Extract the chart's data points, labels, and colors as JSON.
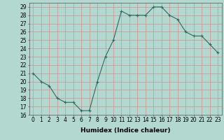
{
  "x": [
    0,
    1,
    2,
    3,
    4,
    5,
    6,
    7,
    8,
    9,
    10,
    11,
    12,
    13,
    14,
    15,
    16,
    17,
    18,
    19,
    20,
    21,
    22,
    23
  ],
  "y": [
    21,
    20,
    19.5,
    18,
    17.5,
    17.5,
    16.5,
    16.5,
    20,
    23,
    25,
    28.5,
    28,
    28,
    28,
    29,
    29,
    28,
    27.5,
    26,
    25.5,
    25.5,
    24.5,
    23.5
  ],
  "line_color": "#2e6b5e",
  "marker": "+",
  "bg_color": "#b2d8d0",
  "grid_color": "#d09090",
  "xlabel": "Humidex (Indice chaleur)",
  "xlim": [
    -0.5,
    23.5
  ],
  "ylim": [
    16,
    29.5
  ],
  "yticks": [
    16,
    17,
    18,
    19,
    20,
    21,
    22,
    23,
    24,
    25,
    26,
    27,
    28,
    29
  ],
  "xticks": [
    0,
    1,
    2,
    3,
    4,
    5,
    6,
    7,
    8,
    9,
    10,
    11,
    12,
    13,
    14,
    15,
    16,
    17,
    18,
    19,
    20,
    21,
    22,
    23
  ],
  "fontsize_ticks": 5.5,
  "fontsize_xlabel": 6.5
}
